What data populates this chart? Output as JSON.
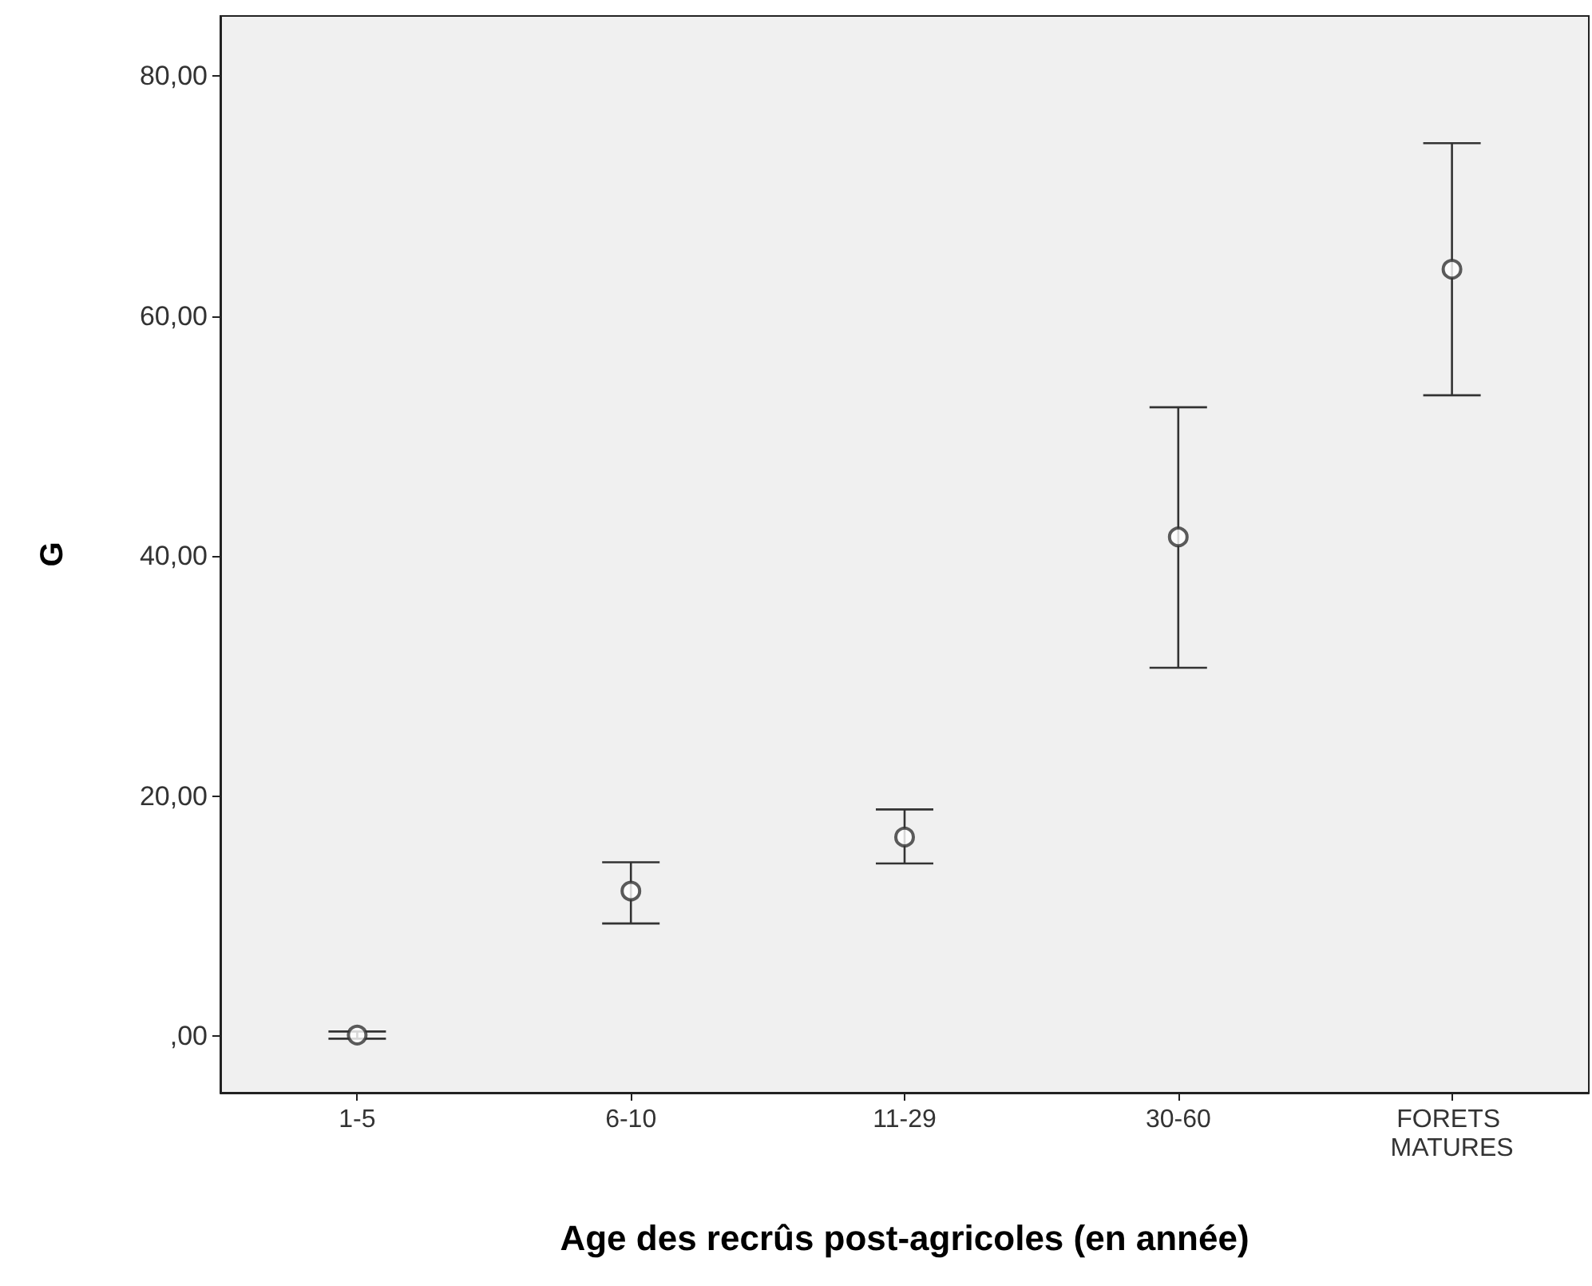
{
  "chart_data": {
    "type": "scatter",
    "xlabel": "Age des recrûs post-agricoles (en année)",
    "ylabel": "G",
    "categories": [
      "1-5",
      "6-10",
      "11-29",
      "30-60",
      "FORETS MATURES"
    ],
    "values": [
      0.1,
      12.1,
      16.6,
      41.6,
      63.9
    ],
    "errors": [
      [
        -0.2,
        0.4
      ],
      [
        9.4,
        14.5
      ],
      [
        14.4,
        18.9
      ],
      [
        30.7,
        52.4
      ],
      [
        53.4,
        74.4
      ]
    ],
    "color": "#333333",
    "marker": "circle",
    "grid": false,
    "ylim": [
      -4.7,
      85
    ],
    "yticks": [
      {
        "value": 0,
        "label": ",00"
      },
      {
        "value": 20,
        "label": "20,00"
      },
      {
        "value": 40,
        "label": "40,00"
      },
      {
        "value": 60,
        "label": "60,00"
      },
      {
        "value": 80,
        "label": "80,00"
      }
    ]
  }
}
